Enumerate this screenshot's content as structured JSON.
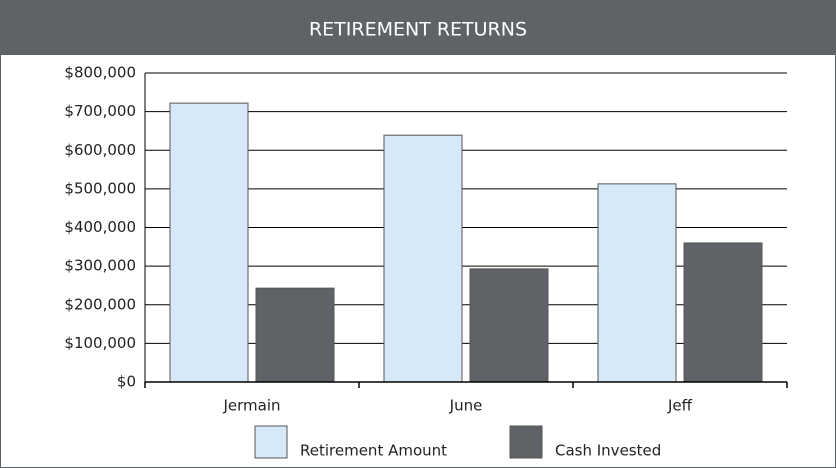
{
  "chart_data": {
    "type": "bar",
    "title": "RETIREMENT RETURNS",
    "categories": [
      "Jermain",
      "June",
      "Jeff"
    ],
    "series": [
      {
        "name": "Retirement Amount",
        "color": "#d7e8f8",
        "values": [
          722000,
          639000,
          513000
        ]
      },
      {
        "name": "Cash Invested",
        "color": "#5f6368",
        "values": [
          243000,
          293000,
          360000
        ]
      }
    ],
    "ylim": [
      0,
      800000
    ],
    "yticks": [
      {
        "value": 0,
        "label": "$0"
      },
      {
        "value": 100000,
        "label": "$100,000"
      },
      {
        "value": 200000,
        "label": "$200,000"
      },
      {
        "value": 300000,
        "label": "$300,000"
      },
      {
        "value": 400000,
        "label": "$400,000"
      },
      {
        "value": 500000,
        "label": "$500,000"
      },
      {
        "value": 600000,
        "label": "$600,000"
      },
      {
        "value": 700000,
        "label": "$700,000"
      },
      {
        "value": 800000,
        "label": "$800,000"
      }
    ],
    "grid": true,
    "legend": "bottom"
  }
}
